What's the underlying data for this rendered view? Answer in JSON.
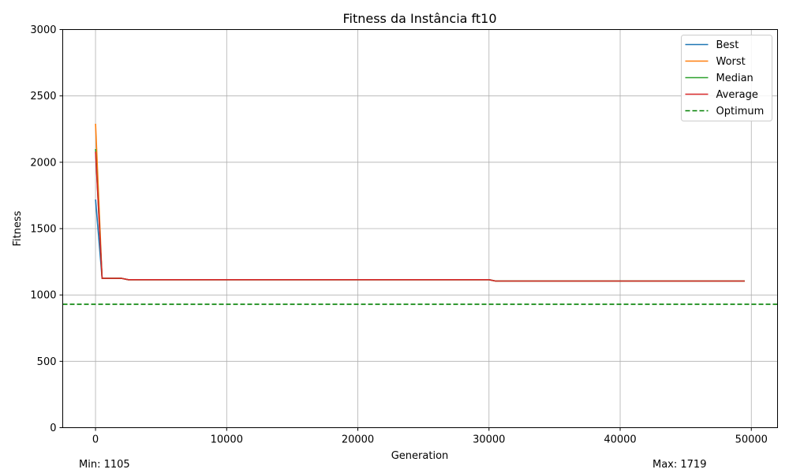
{
  "chart_data": {
    "type": "line",
    "title": "Fitness da Instância ft10",
    "xlabel": "Generation",
    "ylabel": "Fitness",
    "xlim": [
      -2500,
      52000
    ],
    "ylim": [
      0,
      3000
    ],
    "x_ticks": [
      0,
      10000,
      20000,
      30000,
      40000,
      50000
    ],
    "y_ticks": [
      0,
      500,
      1000,
      1500,
      2000,
      2500,
      3000
    ],
    "grid": true,
    "legend_position": "top-right",
    "series": [
      {
        "name": "Best",
        "color": "#1f77b4",
        "style": "solid",
        "points": [
          [
            0,
            1719
          ],
          [
            500,
            1125
          ],
          [
            2000,
            1125
          ],
          [
            2500,
            1115
          ],
          [
            30000,
            1115
          ],
          [
            30500,
            1105
          ],
          [
            49500,
            1105
          ]
        ]
      },
      {
        "name": "Worst",
        "color": "#ff7f0e",
        "style": "solid",
        "points": [
          [
            0,
            2290
          ],
          [
            500,
            1125
          ],
          [
            2000,
            1125
          ],
          [
            2500,
            1115
          ],
          [
            30000,
            1115
          ],
          [
            30500,
            1105
          ],
          [
            49500,
            1105
          ]
        ]
      },
      {
        "name": "Median",
        "color": "#2ca02c",
        "style": "solid",
        "points": [
          [
            0,
            2100
          ],
          [
            500,
            1125
          ],
          [
            2000,
            1125
          ],
          [
            2500,
            1115
          ],
          [
            30000,
            1115
          ],
          [
            30500,
            1105
          ],
          [
            49500,
            1105
          ]
        ]
      },
      {
        "name": "Average",
        "color": "#d62728",
        "style": "solid",
        "points": [
          [
            0,
            2080
          ],
          [
            500,
            1125
          ],
          [
            2000,
            1125
          ],
          [
            2500,
            1115
          ],
          [
            30000,
            1115
          ],
          [
            30500,
            1105
          ],
          [
            49500,
            1105
          ]
        ]
      }
    ],
    "reference_line": {
      "name": "Optimum",
      "color": "#008000",
      "style": "dashed",
      "y": 930
    }
  },
  "footer": {
    "min_text": "Min: 1105",
    "max_text": "Max: 1719"
  }
}
